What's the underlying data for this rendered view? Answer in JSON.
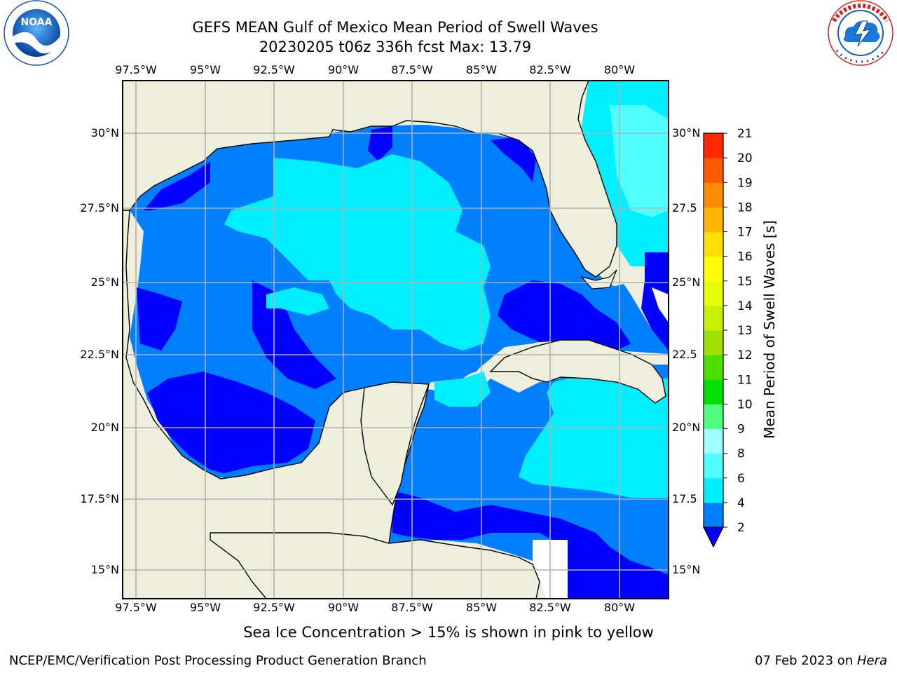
{
  "header": {
    "title_line1": "GEFS MEAN Gulf of Mexico Mean Period of Swell Waves",
    "title_line2": "20230205 t06z 336h fcst   Max: 13.79"
  },
  "logos": {
    "noaa": {
      "text": "NOAA",
      "ring_text": "NATIONAL OCEANIC AND ATMOSPHERIC ADMINISTRATION · U.S. DEPARTMENT OF COMMERCE"
    },
    "nws": {
      "ring_text": "NATIONAL WEATHER SERVICE"
    }
  },
  "map": {
    "lon_labels": [
      "97.5°W",
      "95°W",
      "92.5°W",
      "90°W",
      "87.5°W",
      "85°W",
      "82.5°W",
      "80°W"
    ],
    "lat_labels": [
      "30°N",
      "27.5°N",
      "25°N",
      "22.5°N",
      "20°N",
      "17.5°N",
      "15°N"
    ],
    "right_lat_labels": [
      "30°N",
      "27.5",
      "25°N",
      "22.5",
      "20°N",
      "17.5",
      "15°N"
    ],
    "colors": {
      "land": "#eeeedc",
      "water_unmasked": "#ffffff",
      "swell_2_4": "#0080ff",
      "swell_lt2": "#0000ff",
      "swell_4_6": "#00f0ff",
      "swell_6_8": "#50ffff",
      "ice_green": "#aaee00",
      "ice_yellow": "#ccff00",
      "grid": "#b0b0b0",
      "coast": "#000000"
    }
  },
  "colorbar": {
    "label": "Mean Period of Swell Waves [s]",
    "ticks": [
      "2",
      "4",
      "6",
      "8",
      "9",
      "10",
      "11",
      "12",
      "13",
      "14",
      "15",
      "16",
      "17",
      "18",
      "19",
      "20",
      "21"
    ],
    "colors": [
      "#0080ff",
      "#00f0ff",
      "#50ffff",
      "#a0ffff",
      "#50ff80",
      "#00e000",
      "#50e000",
      "#a0e000",
      "#c8f000",
      "#e6ff00",
      "#ffff00",
      "#ffe000",
      "#ffb400",
      "#ff8c00",
      "#ff5a00",
      "#ff2800"
    ],
    "under_color": "#0000ff"
  },
  "footer": {
    "note": "Sea Ice Concentration > 15% is shown in pink to yellow",
    "credit_left": "NCEP/EMC/Verification Post Processing Product Generation Branch",
    "credit_date": "07 Feb 2023 on ",
    "credit_host": "Hera"
  }
}
